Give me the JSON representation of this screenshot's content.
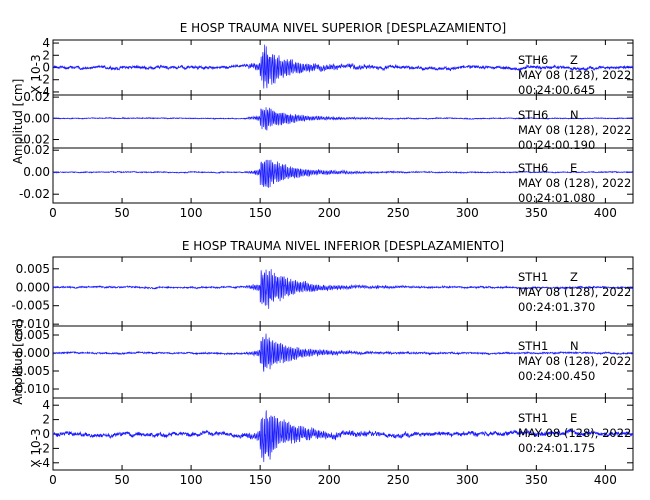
{
  "chart_data": {
    "type": "line",
    "x_ticks": [
      0,
      50,
      100,
      150,
      200,
      250,
      300,
      350,
      400
    ],
    "xlim": [
      0,
      420
    ],
    "groups": [
      {
        "title": "E HOSP TRAUMA NIVEL SUPERIOR [DESPLAZAMIENTO]",
        "ylabel": "Amplitud [cm]",
        "scale_note": "X 10-3",
        "panels": [
          {
            "station": "STH6",
            "component": "Z",
            "date": "MAY 08 (128), 2022",
            "time": "00:24:00.645",
            "ylim": [
              -4.5,
              4.5
            ],
            "yticks": [
              -4,
              -2,
              0,
              2,
              4
            ],
            "ytick_labels": [
              "-4",
              "-2",
              "0",
              "2",
              "4"
            ],
            "peak_amplitude": 4.2,
            "noise_amplitude": 0.5,
            "arrival": 150
          },
          {
            "station": "STH6",
            "component": "N",
            "date": "MAY 08 (128), 2022",
            "time": "00:24:00.190",
            "ylim": [
              -0.028,
              0.022
            ],
            "yticks": [
              -0.02,
              0.0,
              0.02
            ],
            "ytick_labels": [
              "-0.02",
              "0.00",
              "0.02"
            ],
            "peak_amplitude": 0.015,
            "noise_amplitude": 0.0008,
            "arrival": 150
          },
          {
            "station": "STH6",
            "component": "E",
            "date": "MAY 08 (128), 2022",
            "time": "00:24:01.080",
            "ylim": [
              -0.028,
              0.022
            ],
            "yticks": [
              -0.02,
              0.0,
              0.02
            ],
            "ytick_labels": [
              "-0.02",
              "0.00",
              "0.02"
            ],
            "peak_amplitude": 0.019,
            "noise_amplitude": 0.0008,
            "arrival": 150
          }
        ]
      },
      {
        "title": "E HOSP TRAUMA NIVEL INFERIOR [DESPLAZAMIENTO]",
        "ylabel": "Amplitud [cm]",
        "scale_note": "X 10-3",
        "panels": [
          {
            "station": "STH1",
            "component": "Z",
            "date": "MAY 08 (128), 2022",
            "time": "00:24:01.370",
            "ylim": [
              -0.0105,
              0.0082
            ],
            "yticks": [
              -0.01,
              -0.005,
              0.0,
              0.005
            ],
            "ytick_labels": [
              "-0.010",
              "-0.005",
              "0.000",
              "0.005"
            ],
            "peak_amplitude": 0.0075,
            "noise_amplitude": 0.0004,
            "arrival": 150
          },
          {
            "station": "STH1",
            "component": "N",
            "date": "MAY 08 (128), 2022",
            "time": "00:24:00.450",
            "ylim": [
              -0.0125,
              0.0075
            ],
            "yticks": [
              -0.01,
              -0.005,
              0.0,
              0.005
            ],
            "ytick_labels": [
              "-0.010",
              "-0.005",
              "0.000",
              "0.005"
            ],
            "peak_amplitude": 0.0065,
            "noise_amplitude": 0.0004,
            "arrival": 150
          },
          {
            "station": "STH1",
            "component": "E",
            "date": "MAY 08 (128), 2022",
            "time": "00:24:01.175",
            "ylim": [
              -5,
              5
            ],
            "yticks": [
              -4,
              -2,
              0,
              2,
              4
            ],
            "ytick_labels": [
              "-4",
              "-2",
              "0",
              "2",
              "4"
            ],
            "peak_amplitude": 4.5,
            "noise_amplitude": 0.6,
            "arrival": 150
          }
        ]
      }
    ]
  }
}
